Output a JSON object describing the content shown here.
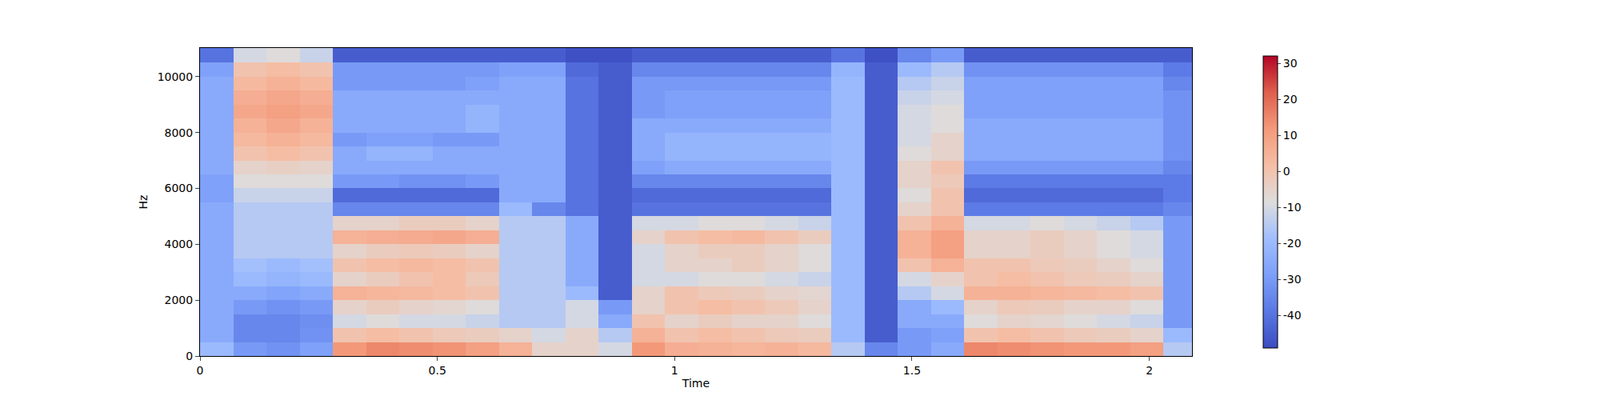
{
  "chart_data": {
    "type": "heatmap",
    "x_label": "Time",
    "y_label": "Hz",
    "xlim": [
      0,
      2.09
    ],
    "ylim": [
      0,
      11025
    ],
    "xticks": [
      0,
      0.5,
      1,
      1.5,
      2
    ],
    "yticks": [
      0,
      2000,
      4000,
      6000,
      8000,
      10000
    ],
    "colorbar_range": [
      -49,
      32
    ],
    "colorbar_ticks": [
      -40,
      -30,
      -20,
      -10,
      0,
      10,
      20,
      30
    ],
    "x": [
      0,
      0.07,
      0.14,
      0.21,
      0.28,
      0.35,
      0.42,
      0.49,
      0.56,
      0.63,
      0.7,
      0.77,
      0.84,
      0.91,
      0.98,
      1.05,
      1.12,
      1.19,
      1.26,
      1.33,
      1.4,
      1.47,
      1.54,
      1.61,
      1.68,
      1.75,
      1.82,
      1.89,
      1.96,
      2.03,
      2.1
    ],
    "y": [
      0,
      500,
      1000,
      1500,
      2000,
      2500,
      3000,
      3500,
      4000,
      4500,
      5000,
      5500,
      6000,
      6500,
      7000,
      7500,
      8000,
      8500,
      9000,
      9500,
      10000,
      10500,
      11025
    ],
    "z": [
      [
        -20,
        -30,
        -32,
        -28,
        12,
        15,
        14,
        13,
        10,
        5,
        -5,
        -5,
        -10,
        12,
        6,
        5,
        4,
        5,
        3,
        -15,
        -35,
        -30,
        -25,
        15,
        14,
        13,
        12,
        12,
        10,
        -15
      ],
      [
        -25,
        -35,
        -35,
        -32,
        0,
        2,
        0,
        -2,
        -3,
        -5,
        -10,
        -5,
        -15,
        5,
        0,
        2,
        0,
        -2,
        -3,
        -20,
        -45,
        -30,
        -28,
        0,
        2,
        0,
        -2,
        -3,
        -5,
        -20
      ],
      [
        -25,
        -35,
        -35,
        -33,
        -10,
        -8,
        -10,
        -10,
        -12,
        -15,
        -15,
        -10,
        -25,
        0,
        -5,
        -3,
        -5,
        -5,
        -8,
        -20,
        -45,
        -25,
        -25,
        -8,
        -5,
        -6,
        -8,
        -10,
        -12,
        -30
      ],
      [
        -25,
        -30,
        -32,
        -30,
        -5,
        -3,
        -5,
        -6,
        -8,
        -15,
        -15,
        -10,
        -30,
        -5,
        0,
        2,
        0,
        -2,
        -5,
        -20,
        -45,
        -25,
        -20,
        -5,
        -2,
        -3,
        -5,
        -5,
        -8,
        -30
      ],
      [
        -25,
        -25,
        -27,
        -25,
        5,
        4,
        3,
        2,
        0,
        -15,
        -15,
        -20,
        -45,
        -5,
        0,
        -2,
        -3,
        -5,
        -6,
        -20,
        -45,
        -15,
        -10,
        5,
        5,
        4,
        3,
        2,
        0,
        -30
      ],
      [
        -25,
        -20,
        -22,
        -20,
        -5,
        -3,
        0,
        2,
        -2,
        -15,
        -15,
        -25,
        -45,
        -10,
        -10,
        -8,
        -8,
        -10,
        -12,
        -20,
        -45,
        -10,
        -5,
        0,
        2,
        0,
        -2,
        -3,
        -5,
        -30
      ],
      [
        -25,
        -18,
        -20,
        -18,
        0,
        2,
        3,
        2,
        0,
        -15,
        -15,
        -25,
        -45,
        -10,
        -5,
        -5,
        -3,
        -5,
        -8,
        -20,
        -45,
        0,
        5,
        0,
        0,
        -2,
        -3,
        -5,
        -8,
        -30
      ],
      [
        -25,
        -15,
        -15,
        -15,
        -5,
        -3,
        -2,
        -3,
        -5,
        -15,
        -15,
        -25,
        -45,
        -10,
        -5,
        -3,
        -3,
        -5,
        -8,
        -20,
        -45,
        5,
        10,
        -5,
        -5,
        -3,
        -5,
        -8,
        -10,
        -30
      ],
      [
        -25,
        -15,
        -15,
        -15,
        5,
        6,
        7,
        8,
        6,
        -15,
        -15,
        -25,
        -45,
        -5,
        0,
        2,
        3,
        0,
        -3,
        -20,
        -45,
        5,
        10,
        -5,
        -5,
        -3,
        -5,
        -8,
        -10,
        -30
      ],
      [
        -25,
        -15,
        -15,
        -15,
        -5,
        -5,
        -3,
        -3,
        -5,
        -15,
        -15,
        -25,
        -45,
        -10,
        -10,
        -8,
        -8,
        -10,
        -12,
        -20,
        -45,
        0,
        5,
        -10,
        -10,
        -8,
        -10,
        -12,
        -15,
        -30
      ],
      [
        -25,
        -15,
        -15,
        -15,
        -35,
        -35,
        -35,
        -35,
        -35,
        -20,
        -35,
        -40,
        -45,
        -40,
        -40,
        -40,
        -40,
        -40,
        -40,
        -20,
        -45,
        -5,
        0,
        -38,
        -38,
        -38,
        -38,
        -38,
        -38,
        -35
      ],
      [
        -28,
        -12,
        -12,
        -12,
        -42,
        -42,
        -42,
        -42,
        -42,
        -25,
        -25,
        -40,
        -45,
        -42,
        -42,
        -42,
        -42,
        -42,
        -42,
        -20,
        -45,
        -8,
        0,
        -42,
        -42,
        -42,
        -42,
        -42,
        -42,
        -38
      ],
      [
        -28,
        -8,
        -8,
        -8,
        -30,
        -30,
        -32,
        -32,
        -30,
        -25,
        -25,
        -40,
        -45,
        -35,
        -35,
        -35,
        -35,
        -35,
        -35,
        -20,
        -45,
        -5,
        -2,
        -38,
        -38,
        -38,
        -38,
        -38,
        -38,
        -38
      ],
      [
        -25,
        -5,
        -4,
        -5,
        -25,
        -25,
        -25,
        -25,
        -25,
        -25,
        -25,
        -40,
        -45,
        -28,
        -25,
        -25,
        -25,
        -25,
        -25,
        -20,
        -45,
        -5,
        0,
        -30,
        -30,
        -30,
        -30,
        -30,
        -30,
        -35
      ],
      [
        -25,
        0,
        2,
        0,
        -25,
        -22,
        -22,
        -25,
        -25,
        -25,
        -25,
        -40,
        -45,
        -25,
        -22,
        -22,
        -22,
        -22,
        -22,
        -20,
        -45,
        -8,
        -5,
        -25,
        -25,
        -25,
        -25,
        -25,
        -25,
        -32
      ],
      [
        -25,
        3,
        5,
        3,
        -30,
        -28,
        -28,
        -30,
        -30,
        -25,
        -25,
        -40,
        -45,
        -25,
        -22,
        -22,
        -22,
        -22,
        -22,
        -20,
        -45,
        -10,
        -5,
        -25,
        -25,
        -25,
        -25,
        -25,
        -25,
        -32
      ],
      [
        -25,
        5,
        8,
        5,
        -25,
        -25,
        -25,
        -25,
        -22,
        -25,
        -25,
        -40,
        -45,
        -25,
        -25,
        -25,
        -25,
        -25,
        -25,
        -20,
        -45,
        -10,
        -8,
        -25,
        -25,
        -25,
        -25,
        -25,
        -25,
        -32
      ],
      [
        -25,
        8,
        10,
        8,
        -25,
        -25,
        -25,
        -25,
        -22,
        -25,
        -25,
        -40,
        -45,
        -30,
        -28,
        -28,
        -28,
        -28,
        -28,
        -20,
        -45,
        -10,
        -8,
        -28,
        -28,
        -28,
        -28,
        -28,
        -28,
        -32
      ],
      [
        -25,
        6,
        8,
        6,
        -25,
        -25,
        -25,
        -25,
        -25,
        -25,
        -25,
        -40,
        -45,
        -30,
        -28,
        -28,
        -28,
        -28,
        -28,
        -20,
        -45,
        -12,
        -10,
        -28,
        -28,
        -28,
        -28,
        -28,
        -28,
        -32
      ],
      [
        -25,
        3,
        5,
        3,
        -30,
        -30,
        -30,
        -30,
        -28,
        -25,
        -25,
        -40,
        -45,
        -30,
        -30,
        -30,
        -30,
        -30,
        -30,
        -20,
        -45,
        -15,
        -12,
        -28,
        -28,
        -28,
        -28,
        -28,
        -28,
        -35
      ],
      [
        -28,
        0,
        2,
        0,
        -30,
        -30,
        -30,
        -30,
        -30,
        -28,
        -28,
        -42,
        -45,
        -35,
        -35,
        -35,
        -35,
        -35,
        -35,
        -22,
        -45,
        -20,
        -15,
        -32,
        -32,
        -32,
        -32,
        -32,
        -32,
        -38
      ],
      [
        -40,
        -10,
        -8,
        -12,
        -45,
        -45,
        -45,
        -45,
        -45,
        -45,
        -45,
        -48,
        -48,
        -45,
        -45,
        -45,
        -45,
        -45,
        -45,
        -40,
        -48,
        -35,
        -30,
        -45,
        -45,
        -45,
        -45,
        -45,
        -45,
        -45
      ]
    ]
  }
}
